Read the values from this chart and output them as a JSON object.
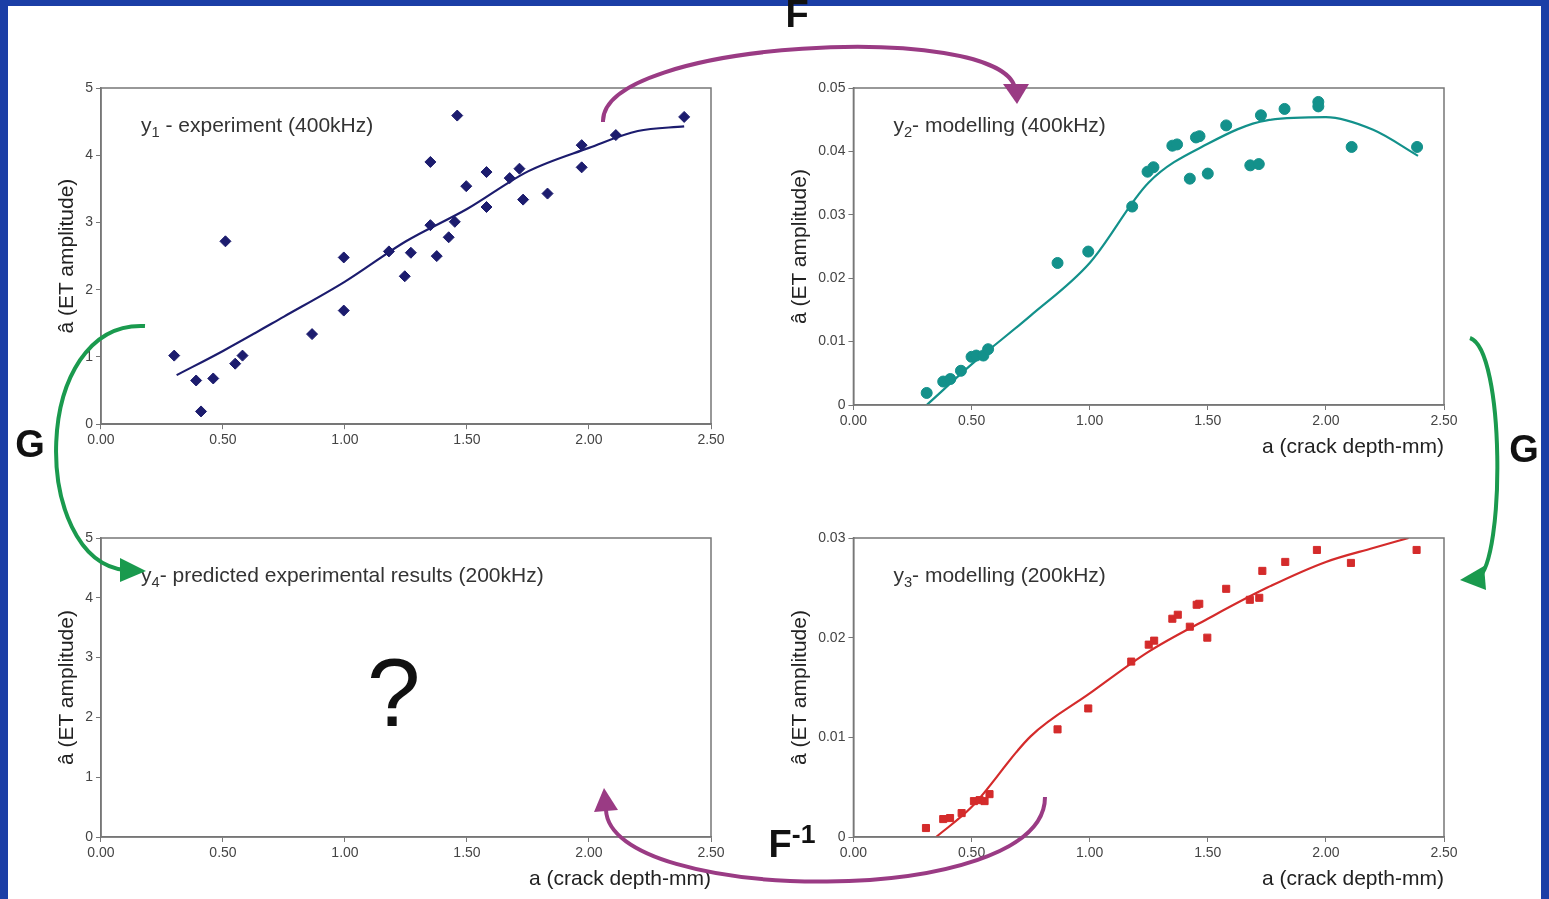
{
  "chart_data": [
    {
      "type": "scatter",
      "title": "y$_{1}$ - experiment (400kHz)",
      "ylabel": "â (ET amplitude)",
      "xlim": [
        0,
        2.5
      ],
      "xticks": [
        {
          "value": 0,
          "label": "0.00"
        },
        {
          "value": 0.5,
          "label": "0.50"
        },
        {
          "value": 1,
          "label": "1.00"
        },
        {
          "value": 1.5,
          "label": "1.50"
        },
        {
          "value": 2,
          "label": "2.00"
        },
        {
          "value": 2.5,
          "label": "2.50"
        }
      ],
      "ylim": [
        0,
        5
      ],
      "yticks": [
        0,
        1,
        2,
        3,
        4,
        5
      ],
      "grid": false,
      "legend": false,
      "annotations": [
        "F",
        "G"
      ],
      "series": [
        {
          "type": "scatter",
          "marker": "diamond",
          "color": "#1c1c6e",
          "x": [
            0.3,
            0.39,
            0.41,
            0.46,
            0.51,
            0.55,
            0.58,
            0.865,
            0.995,
            0.995,
            1.18,
            1.245,
            1.27,
            1.35,
            1.35,
            1.376,
            1.425,
            1.45,
            1.46,
            1.497,
            1.58,
            1.58,
            1.675,
            1.715,
            1.73,
            1.83,
            1.97,
            1.97,
            2.11,
            2.39
          ],
          "values": [
            1.02,
            0.65,
            0.19,
            0.68,
            2.72,
            0.9,
            1.02,
            1.34,
            2.48,
            1.69,
            2.57,
            2.2,
            2.55,
            3.9,
            2.96,
            2.5,
            2.78,
            3.01,
            4.59,
            3.54,
            3.75,
            3.23,
            3.66,
            3.8,
            3.34,
            3.43,
            4.15,
            3.82,
            4.3,
            4.57
          ]
        },
        {
          "type": "line",
          "marker": "none",
          "color": "#1c1c6e",
          "x": [
            0.31,
            0.5,
            0.75,
            1.0,
            1.25,
            1.5,
            1.75,
            2.0,
            2.2,
            2.39
          ],
          "values": [
            0.73,
            1.09,
            1.6,
            2.12,
            2.72,
            3.2,
            3.76,
            4.11,
            4.36,
            4.43
          ]
        }
      ]
    },
    {
      "type": "scatter",
      "title": "y$_{2}$- modelling (400kHz)",
      "xlabel": "a (crack depth-mm)",
      "ylabel": "â (ET amplitude)",
      "xlim": [
        0,
        2.5
      ],
      "xticks": [
        {
          "value": 0,
          "label": "0.00"
        },
        {
          "value": 0.5,
          "label": "0.50"
        },
        {
          "value": 1,
          "label": "1.00"
        },
        {
          "value": 1.5,
          "label": "1.50"
        },
        {
          "value": 2,
          "label": "2.00"
        },
        {
          "value": 2.5,
          "label": "2.50"
        }
      ],
      "ylim": [
        0,
        0.05
      ],
      "yticks": [
        0,
        0.01,
        0.02,
        0.03,
        0.04,
        0.05
      ],
      "grid": false,
      "legend": false,
      "annotations": [
        "G"
      ],
      "series": [
        {
          "type": "scatter",
          "marker": "circle",
          "color": "#13918b",
          "x": [
            0.31,
            0.38,
            0.41,
            0.455,
            0.5,
            0.52,
            0.55,
            0.57,
            0.864,
            0.994,
            1.18,
            1.245,
            1.27,
            1.35,
            1.37,
            1.424,
            1.45,
            1.465,
            1.5,
            1.578,
            1.68,
            1.716,
            1.725,
            1.825,
            1.968,
            1.968,
            2.109,
            2.386
          ],
          "values": [
            0.0019,
            0.0037,
            0.0041,
            0.0054,
            0.0076,
            0.0078,
            0.0078,
            0.0088,
            0.0224,
            0.0242,
            0.0313,
            0.0368,
            0.0375,
            0.0409,
            0.0411,
            0.0357,
            0.0422,
            0.0424,
            0.0365,
            0.0441,
            0.0378,
            0.038,
            0.0457,
            0.0467,
            0.0478,
            0.0471,
            0.0407,
            0.0407
          ]
        },
        {
          "type": "line",
          "marker": "none",
          "color": "#13918b",
          "x": [
            0.31,
            0.5,
            0.75,
            1.0,
            1.25,
            1.5,
            1.75,
            2.0,
            2.2,
            2.39
          ],
          "values": [
            0,
            0.0064,
            0.0141,
            0.0224,
            0.0351,
            0.0412,
            0.0449,
            0.0454,
            0.0434,
            0.0393
          ]
        }
      ]
    },
    {
      "type": "scatter",
      "title": "y$_{4}$- predicted experimental results (200kHz)",
      "xlabel": "a (crack depth-mm)",
      "ylabel": "â (ET amplitude)",
      "xlim": [
        0,
        2.5
      ],
      "xticks": [
        {
          "value": 0,
          "label": "0.00"
        },
        {
          "value": 0.5,
          "label": "0.50"
        },
        {
          "value": 1,
          "label": "1.00"
        },
        {
          "value": 1.5,
          "label": "1.50"
        },
        {
          "value": 2,
          "label": "2.00"
        },
        {
          "value": 2.5,
          "label": "2.50"
        }
      ],
      "ylim": [
        0,
        5
      ],
      "yticks": [
        0,
        1,
        2,
        3,
        4,
        5
      ],
      "grid": false,
      "legend": false,
      "annotations": [
        "?"
      ]
    },
    {
      "type": "scatter",
      "title": "y$_{3}$- modelling (200kHz)",
      "xlabel": "a (crack depth-mm)",
      "ylabel": "â (ET amplitude)",
      "xlim": [
        0,
        2.5
      ],
      "xticks": [
        {
          "value": 0,
          "label": "0.00"
        },
        {
          "value": 0.5,
          "label": "0.50"
        },
        {
          "value": 1,
          "label": "1.00"
        },
        {
          "value": 1.5,
          "label": "1.50"
        },
        {
          "value": 2,
          "label": "2.00"
        },
        {
          "value": 2.5,
          "label": "2.50"
        }
      ],
      "ylim": [
        0,
        0.03
      ],
      "yticks": [
        0,
        0.01,
        0.02,
        0.03
      ],
      "grid": false,
      "legend": false,
      "annotations": [
        "F$^{-1}$"
      ],
      "series": [
        {
          "type": "scatter",
          "marker": "square",
          "color": "#d42b2b",
          "x": [
            0.307,
            0.38,
            0.409,
            0.458,
            0.51,
            0.534,
            0.555,
            0.576,
            0.864,
            0.994,
            1.176,
            1.25,
            1.273,
            1.35,
            1.373,
            1.424,
            1.453,
            1.464,
            1.498,
            1.578,
            1.678,
            1.718,
            1.731,
            1.828,
            1.962,
            2.106,
            2.384
          ],
          "values": [
            0.0009,
            0.0018,
            0.0019,
            0.0024,
            0.0036,
            0.0037,
            0.0036,
            0.0043,
            0.0108,
            0.0129,
            0.0176,
            0.0193,
            0.0197,
            0.0219,
            0.0223,
            0.0211,
            0.0233,
            0.0234,
            0.02,
            0.0249,
            0.0238,
            0.024,
            0.0267,
            0.0276,
            0.0288,
            0.0275,
            0.0288
          ]
        },
        {
          "type": "line",
          "marker": "none",
          "color": "#d42b2b",
          "x": [
            0.35,
            0.5,
            0.75,
            1.0,
            1.25,
            1.5,
            1.75,
            2.0,
            2.2,
            2.35
          ],
          "values": [
            0,
            0.003,
            0.0101,
            0.0144,
            0.0186,
            0.0219,
            0.025,
            0.0276,
            0.029,
            0.03
          ]
        }
      ]
    }
  ]
}
